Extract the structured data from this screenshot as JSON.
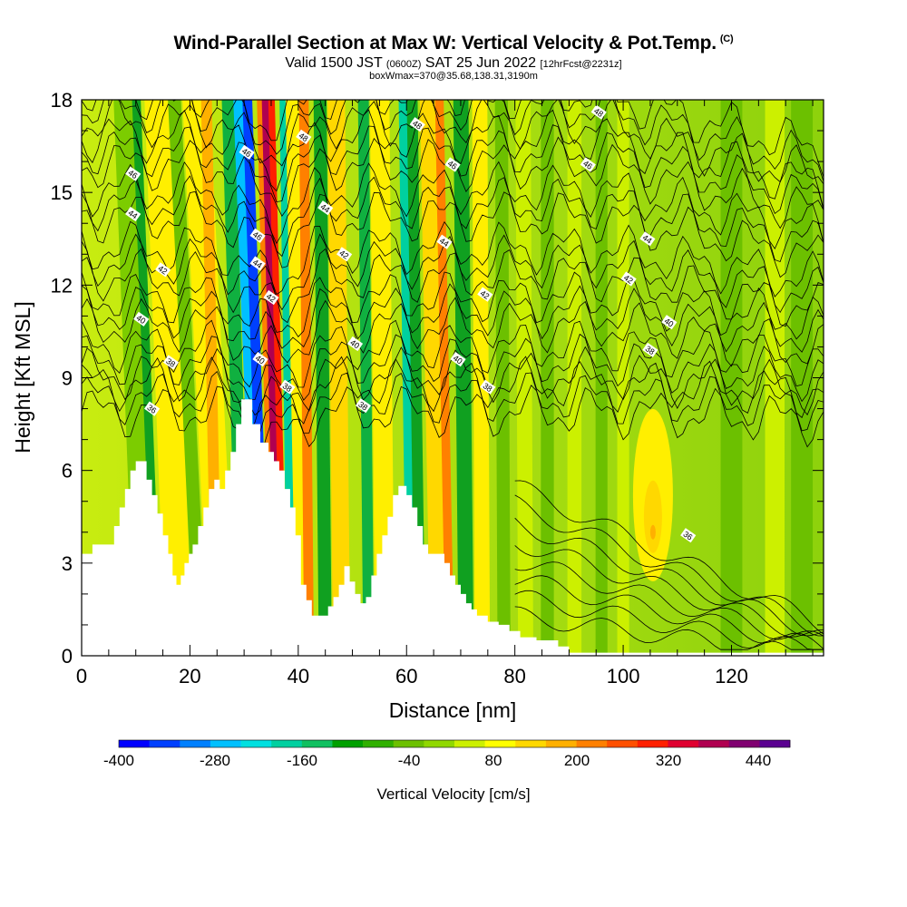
{
  "title": {
    "main": "Wind-Parallel Section at Max W: Vertical Velocity & Pot.Temp.",
    "copyright": "(C)",
    "valid_prefix": "Valid 1500 JST",
    "valid_utc": "(0600Z)",
    "valid_date": "SAT 25 Jun 2022",
    "forecast": "[12hrFcst@2231z]",
    "boxwmax": "boxWmax=370@35.68,138.31,3190m"
  },
  "chart_data": {
    "type": "heatmap",
    "xlabel": "Distance [nm]",
    "ylabel": "Height [Kft MSL]",
    "xlim": [
      0,
      137
    ],
    "ylim": [
      0,
      18
    ],
    "x_ticks": [
      "0",
      "20",
      "40",
      "60",
      "80",
      "100",
      "120"
    ],
    "y_ticks": [
      "0",
      "3",
      "6",
      "9",
      "12",
      "15",
      "18"
    ],
    "colorbar": {
      "label": "Vertical Velocity [cm/s]",
      "tick_labels": [
        "-400",
        "-280",
        "-160",
        "-40",
        "80",
        "200",
        "320",
        "440"
      ],
      "colors": [
        "#0000ff",
        "#0040ff",
        "#0080ff",
        "#00c0ff",
        "#00e0e0",
        "#00d0a0",
        "#10c060",
        "#00a000",
        "#30b000",
        "#6cc000",
        "#90d800",
        "#ccf000",
        "#ffff00",
        "#ffd800",
        "#ffb000",
        "#ff8000",
        "#ff5000",
        "#ff2000",
        "#e00030",
        "#b00050",
        "#800070",
        "#5a0090"
      ]
    },
    "terrain_kft": [
      [
        0,
        3.3
      ],
      [
        2,
        3.3
      ],
      [
        2,
        3.6
      ],
      [
        6,
        3.6
      ],
      [
        6,
        4.2
      ],
      [
        7,
        4.2
      ],
      [
        7,
        4.8
      ],
      [
        8,
        4.8
      ],
      [
        8,
        5.4
      ],
      [
        9,
        5.4
      ],
      [
        9,
        6.0
      ],
      [
        10,
        6.0
      ],
      [
        10,
        6.3
      ],
      [
        12,
        6.3
      ],
      [
        12,
        5.7
      ],
      [
        13,
        5.7
      ],
      [
        13,
        5.2
      ],
      [
        14,
        5.2
      ],
      [
        14,
        4.6
      ],
      [
        15,
        4.6
      ],
      [
        15,
        3.9
      ],
      [
        16,
        3.9
      ],
      [
        16,
        3.3
      ],
      [
        16.8,
        3.3
      ],
      [
        16.8,
        2.6
      ],
      [
        17.5,
        2.6
      ],
      [
        17.5,
        2.3
      ],
      [
        18.3,
        2.3
      ],
      [
        18.3,
        2.6
      ],
      [
        19,
        2.6
      ],
      [
        19,
        3.0
      ],
      [
        19.8,
        3.0
      ],
      [
        19.8,
        3.3
      ],
      [
        20.5,
        3.3
      ],
      [
        20.5,
        3.6
      ],
      [
        21.5,
        3.6
      ],
      [
        21.5,
        4.2
      ],
      [
        22.5,
        4.2
      ],
      [
        22.5,
        4.8
      ],
      [
        23.5,
        4.8
      ],
      [
        23.5,
        5.4
      ],
      [
        24.5,
        5.4
      ],
      [
        24.5,
        5.7
      ],
      [
        25.5,
        5.7
      ],
      [
        25.5,
        5.4
      ],
      [
        26.5,
        5.4
      ],
      [
        26.5,
        6.0
      ],
      [
        27.5,
        6.0
      ],
      [
        27.5,
        6.6
      ],
      [
        28.5,
        6.6
      ],
      [
        28.5,
        7.5
      ],
      [
        29.5,
        7.5
      ],
      [
        29.5,
        8.3
      ],
      [
        31.5,
        8.3
      ],
      [
        31.5,
        7.5
      ],
      [
        33,
        7.5
      ],
      [
        33,
        6.9
      ],
      [
        34.5,
        6.9
      ],
      [
        34.5,
        6.6
      ],
      [
        35.5,
        6.6
      ],
      [
        35.5,
        6.3
      ],
      [
        36.5,
        6.3
      ],
      [
        36.5,
        6.0
      ],
      [
        37.5,
        6.0
      ],
      [
        37.5,
        5.4
      ],
      [
        38.5,
        5.4
      ],
      [
        38.5,
        4.8
      ],
      [
        39.5,
        4.8
      ],
      [
        39.5,
        3.9
      ],
      [
        40.5,
        3.9
      ],
      [
        40.5,
        2.3
      ],
      [
        41.5,
        2.3
      ],
      [
        41.5,
        1.8
      ],
      [
        42.5,
        1.8
      ],
      [
        42.5,
        1.3
      ],
      [
        45.5,
        1.3
      ],
      [
        45.5,
        1.6
      ],
      [
        46.5,
        1.6
      ],
      [
        46.5,
        1.9
      ],
      [
        47.5,
        1.9
      ],
      [
        47.5,
        2.3
      ],
      [
        48.5,
        2.3
      ],
      [
        48.5,
        2.9
      ],
      [
        49.5,
        2.9
      ],
      [
        49.5,
        2.4
      ],
      [
        50.5,
        2.4
      ],
      [
        50.5,
        2.0
      ],
      [
        51.5,
        2.0
      ],
      [
        51.5,
        1.7
      ],
      [
        52.5,
        1.7
      ],
      [
        52.5,
        1.9
      ],
      [
        53.5,
        1.9
      ],
      [
        53.5,
        2.6
      ],
      [
        54.5,
        2.6
      ],
      [
        54.5,
        3.3
      ],
      [
        55.5,
        3.3
      ],
      [
        55.5,
        3.9
      ],
      [
        56.5,
        3.9
      ],
      [
        56.5,
        4.5
      ],
      [
        57.5,
        4.5
      ],
      [
        57.5,
        5.2
      ],
      [
        58.5,
        5.2
      ],
      [
        58.5,
        5.5
      ],
      [
        60,
        5.5
      ],
      [
        60,
        5.2
      ],
      [
        61,
        5.2
      ],
      [
        61,
        4.8
      ],
      [
        62,
        4.8
      ],
      [
        62,
        4.2
      ],
      [
        63,
        4.2
      ],
      [
        63,
        3.6
      ],
      [
        64,
        3.6
      ],
      [
        64,
        3.3
      ],
      [
        67,
        3.3
      ],
      [
        67,
        3.0
      ],
      [
        68,
        3.0
      ],
      [
        68,
        2.6
      ],
      [
        69,
        2.6
      ],
      [
        69,
        2.3
      ],
      [
        70,
        2.3
      ],
      [
        70,
        2.0
      ],
      [
        71,
        2.0
      ],
      [
        71,
        1.7
      ],
      [
        72,
        1.7
      ],
      [
        72,
        1.5
      ],
      [
        73,
        1.5
      ],
      [
        73,
        1.3
      ],
      [
        75,
        1.3
      ],
      [
        75,
        1.1
      ],
      [
        77,
        1.1
      ],
      [
        77,
        1.0
      ],
      [
        79,
        1.0
      ],
      [
        79,
        0.8
      ],
      [
        81,
        0.8
      ],
      [
        81,
        0.6
      ],
      [
        84,
        0.6
      ],
      [
        84,
        0.5
      ],
      [
        88,
        0.5
      ],
      [
        88,
        0.3
      ],
      [
        90,
        0.3
      ],
      [
        90,
        0.1
      ],
      [
        137,
        0.1
      ]
    ],
    "contour_labels": [
      {
        "value": "46",
        "x": 9.5,
        "y": 15.6
      },
      {
        "value": "44",
        "x": 9.5,
        "y": 14.3
      },
      {
        "value": "42",
        "x": 15,
        "y": 12.5
      },
      {
        "value": "40",
        "x": 11,
        "y": 10.9
      },
      {
        "value": "38",
        "x": 16.5,
        "y": 9.5
      },
      {
        "value": "36",
        "x": 13,
        "y": 8.0
      },
      {
        "value": "46",
        "x": 30.5,
        "y": 16.3
      },
      {
        "value": "46",
        "x": 32.5,
        "y": 13.6
      },
      {
        "value": "44",
        "x": 32.5,
        "y": 12.7
      },
      {
        "value": "40",
        "x": 33,
        "y": 9.6
      },
      {
        "value": "42",
        "x": 35,
        "y": 11.6
      },
      {
        "value": "38",
        "x": 38,
        "y": 8.7
      },
      {
        "value": "48",
        "x": 41,
        "y": 16.8
      },
      {
        "value": "44",
        "x": 45,
        "y": 14.5
      },
      {
        "value": "42",
        "x": 48.5,
        "y": 13.0
      },
      {
        "value": "40",
        "x": 50.5,
        "y": 10.1
      },
      {
        "value": "38",
        "x": 52,
        "y": 8.1
      },
      {
        "value": "48",
        "x": 62,
        "y": 17.2
      },
      {
        "value": "46",
        "x": 68.5,
        "y": 15.9
      },
      {
        "value": "44",
        "x": 67,
        "y": 13.4
      },
      {
        "value": "42",
        "x": 74.5,
        "y": 11.7
      },
      {
        "value": "40",
        "x": 69.5,
        "y": 9.6
      },
      {
        "value": "38",
        "x": 75,
        "y": 8.7
      },
      {
        "value": "48",
        "x": 95.5,
        "y": 17.6
      },
      {
        "value": "46",
        "x": 93.5,
        "y": 15.9
      },
      {
        "value": "44",
        "x": 104.5,
        "y": 13.5
      },
      {
        "value": "42",
        "x": 101,
        "y": 12.2
      },
      {
        "value": "40",
        "x": 108.5,
        "y": 10.8
      },
      {
        "value": "38",
        "x": 105,
        "y": 9.9
      },
      {
        "value": "36",
        "x": 112,
        "y": 3.9
      }
    ]
  }
}
